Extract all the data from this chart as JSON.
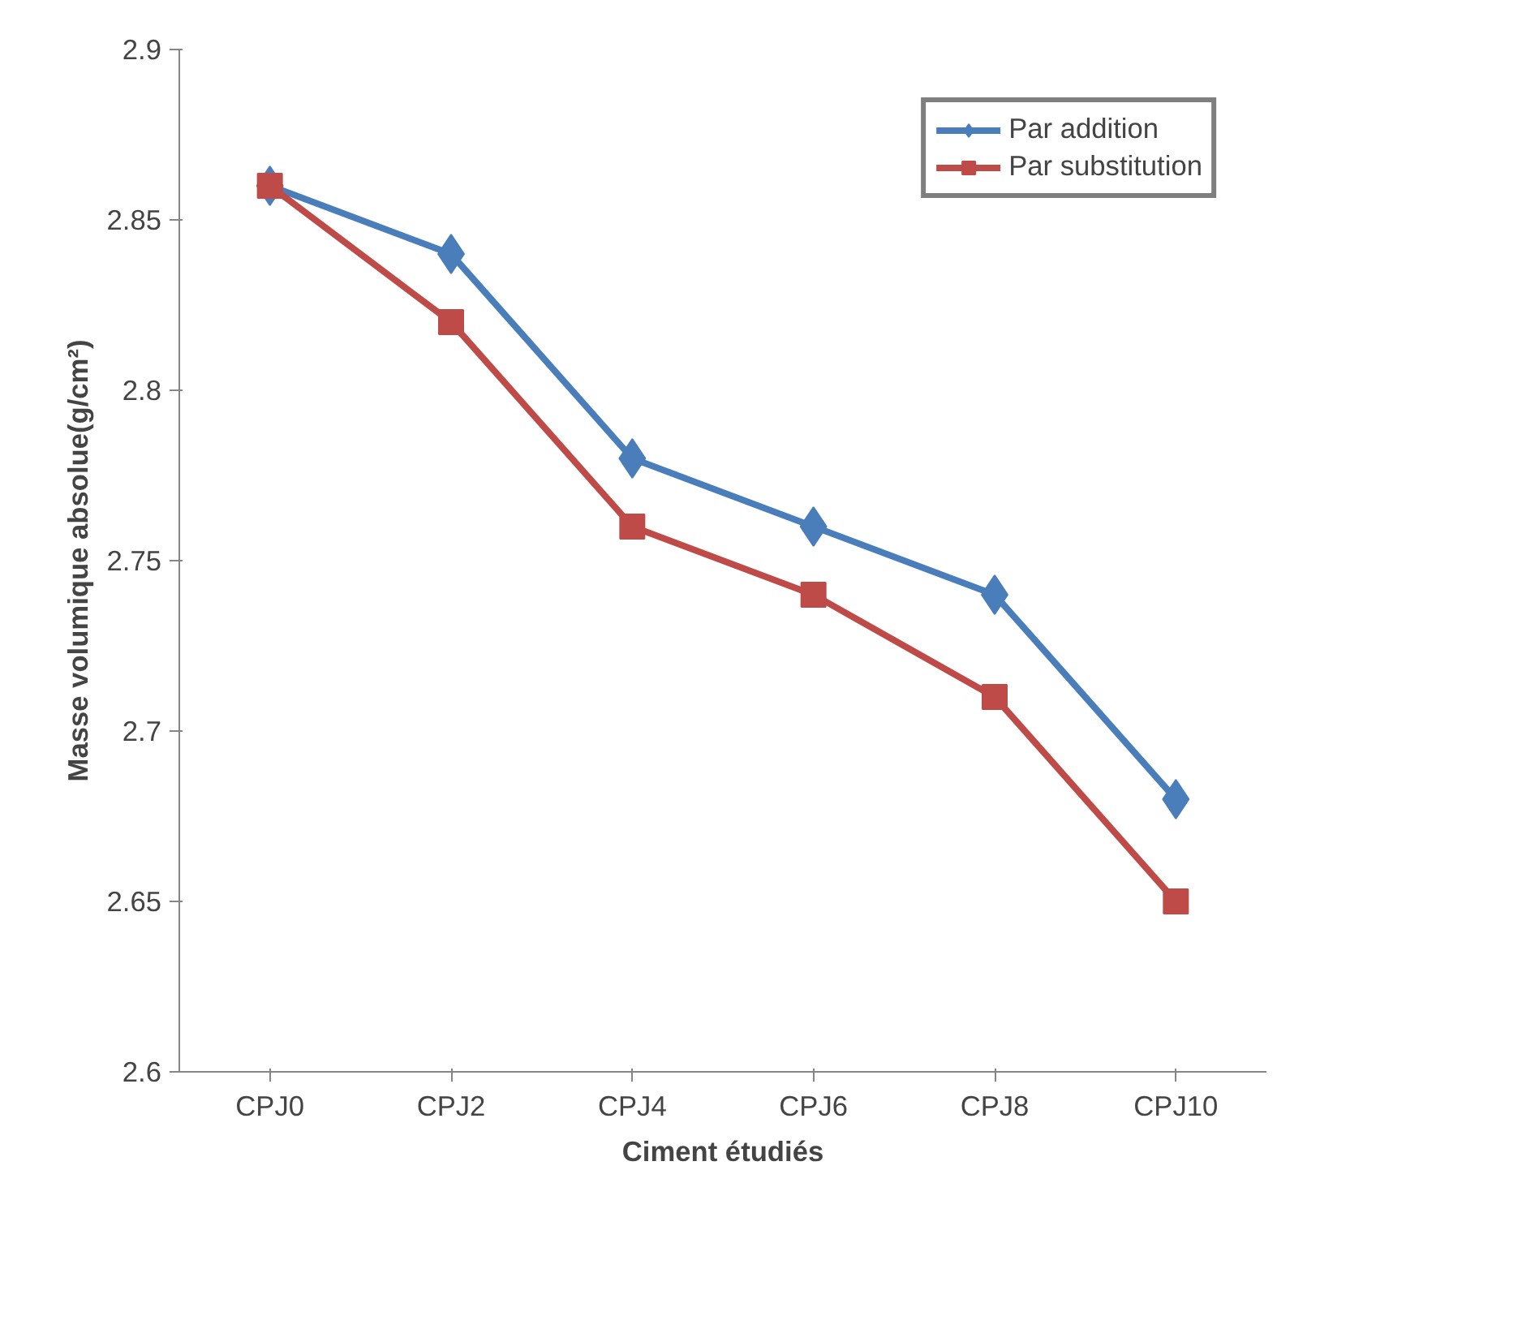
{
  "chart_data": {
    "type": "line",
    "xlabel": "Ciment étudiés",
    "ylabel": "Masse volumique absolue(g/cm²)",
    "categories": [
      "CPJ0",
      "CPJ2",
      "CPJ4",
      "CPJ6",
      "CPJ8",
      "CPJ10"
    ],
    "series": [
      {
        "name": "Par addition",
        "color": "#4a7ebb",
        "marker": "diamond",
        "values": [
          2.86,
          2.84,
          2.78,
          2.76,
          2.74,
          2.68
        ]
      },
      {
        "name": "Par substitution",
        "color": "#be4b48",
        "marker": "square",
        "values": [
          2.86,
          2.82,
          2.76,
          2.74,
          2.71,
          2.65
        ]
      }
    ],
    "ylim": [
      2.6,
      2.9
    ],
    "yticks": [
      2.6,
      2.65,
      2.7,
      2.75,
      2.8,
      2.85,
      2.9
    ],
    "grid": false,
    "legend": "top right",
    "line_style": "solid"
  }
}
